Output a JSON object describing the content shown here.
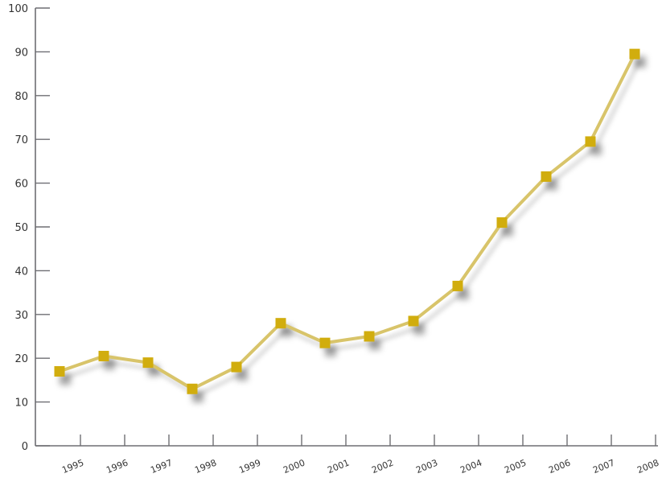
{
  "chart_data": {
    "type": "line",
    "title": "",
    "xlabel": "",
    "ylabel": "",
    "ylim": [
      0,
      100
    ],
    "yticks": [
      0,
      10,
      20,
      30,
      40,
      50,
      60,
      70,
      80,
      90,
      100
    ],
    "xticks": [
      "1995",
      "1996",
      "1997",
      "1998",
      "1999",
      "2000",
      "2001",
      "2002",
      "2003",
      "2004",
      "2005",
      "2006",
      "2007",
      "2008"
    ],
    "grid": false,
    "legend": "none",
    "colors": {
      "line": "#d8c46a",
      "marker": "#d1ad0e",
      "axis": "#6e6e73"
    },
    "series": [
      {
        "x": [
          "1995",
          "1996",
          "1997",
          "1998",
          "1999",
          "2000",
          "2001",
          "2002",
          "2003",
          "2004",
          "2005",
          "2006",
          "2007",
          "2008"
        ],
        "values": [
          17,
          20.5,
          19,
          13,
          18,
          28,
          23.5,
          25,
          28.5,
          36.5,
          51,
          61.5,
          69.5,
          89.5
        ]
      }
    ]
  }
}
